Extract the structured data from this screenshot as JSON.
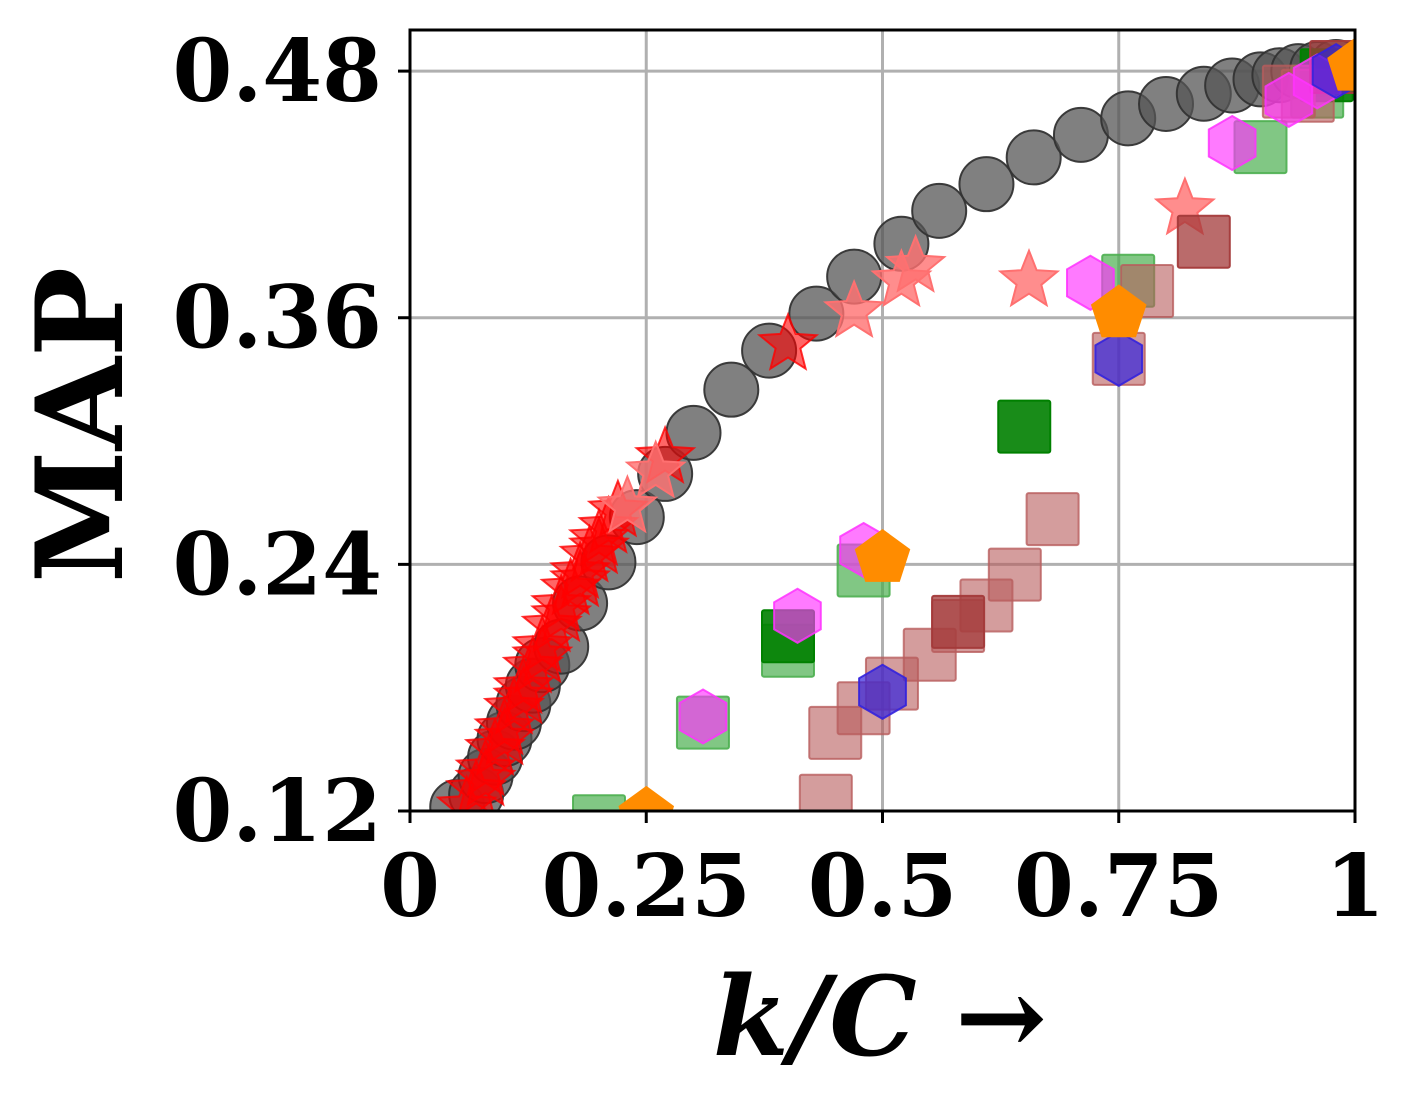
{
  "chart_data": {
    "type": "scatter",
    "title": "",
    "xlabel": "k/C →",
    "ylabel": "MAP",
    "xlim": [
      0,
      1
    ],
    "ylim": [
      0.12,
      0.5
    ],
    "xticks": [
      0,
      0.25,
      0.5,
      0.75,
      1
    ],
    "xtick_labels": [
      "0",
      "0.25",
      "0.5",
      "0.75",
      "1"
    ],
    "yticks": [
      0.12,
      0.24,
      0.36,
      0.48
    ],
    "ytick_labels": [
      "0.12",
      "0.24",
      "0.36",
      "0.48"
    ],
    "grid": true,
    "series": [
      {
        "name": "gray-circles",
        "marker": "circle",
        "color": "#555555",
        "opacity": 0.75,
        "x": [
          0.05,
          0.07,
          0.08,
          0.09,
          0.1,
          0.11,
          0.12,
          0.13,
          0.14,
          0.16,
          0.18,
          0.21,
          0.24,
          0.27,
          0.3,
          0.34,
          0.38,
          0.43,
          0.47,
          0.52,
          0.56,
          0.61,
          0.66,
          0.71,
          0.76,
          0.8,
          0.84,
          0.87,
          0.9,
          0.92,
          0.94,
          0.96,
          0.98
        ],
        "y": [
          0.122,
          0.128,
          0.137,
          0.146,
          0.155,
          0.163,
          0.172,
          0.181,
          0.191,
          0.2,
          0.221,
          0.241,
          0.263,
          0.284,
          0.304,
          0.325,
          0.344,
          0.362,
          0.38,
          0.396,
          0.412,
          0.425,
          0.438,
          0.449,
          0.457,
          0.464,
          0.469,
          0.473,
          0.476,
          0.478,
          0.48,
          0.481,
          0.482
        ]
      },
      {
        "name": "red-stars",
        "marker": "star",
        "color": "#ff0000",
        "opacity": 0.6,
        "x": [
          0.06,
          0.07,
          0.08,
          0.09,
          0.1,
          0.11,
          0.12,
          0.13,
          0.14,
          0.15,
          0.16,
          0.17,
          0.18,
          0.19,
          0.2,
          0.21,
          0.22,
          0.08,
          0.1,
          0.12,
          0.14,
          0.16,
          0.18,
          0.2,
          0.27,
          0.4
        ],
        "y": [
          0.122,
          0.13,
          0.14,
          0.15,
          0.16,
          0.17,
          0.18,
          0.19,
          0.2,
          0.21,
          0.22,
          0.228,
          0.236,
          0.244,
          0.252,
          0.258,
          0.266,
          0.135,
          0.155,
          0.175,
          0.195,
          0.215,
          0.232,
          0.248,
          0.292,
          0.347
        ]
      },
      {
        "name": "light-red-stars",
        "marker": "star",
        "color": "#ff7070",
        "opacity": 0.8,
        "x": [
          0.23,
          0.26,
          0.47,
          0.52,
          0.535,
          0.655,
          0.82
        ],
        "y": [
          0.268,
          0.285,
          0.363,
          0.378,
          0.385,
          0.378,
          0.413
        ]
      },
      {
        "name": "green-squares",
        "marker": "square",
        "color": "#4caf50",
        "opacity": 0.7,
        "x": [
          0.31,
          0.4,
          0.48,
          0.76,
          0.9,
          0.96,
          0.2
        ],
        "y": [
          0.163,
          0.198,
          0.237,
          0.378,
          0.443,
          0.47,
          0.115
        ]
      },
      {
        "name": "dark-green-squares",
        "marker": "square",
        "color": "#008000",
        "opacity": 0.9,
        "x": [
          0.4,
          0.65,
          0.97
        ],
        "y": [
          0.205,
          0.307,
          0.478
        ]
      },
      {
        "name": "brown-squares",
        "marker": "square",
        "color": "#b85c5c",
        "opacity": 0.6,
        "x": [
          0.44,
          0.45,
          0.48,
          0.51,
          0.55,
          0.58,
          0.61,
          0.64,
          0.68,
          0.78,
          0.75,
          0.93,
          0.95
        ],
        "y": [
          0.125,
          0.158,
          0.17,
          0.182,
          0.196,
          0.21,
          0.22,
          0.235,
          0.262,
          0.373,
          0.34,
          0.47,
          0.468
        ]
      },
      {
        "name": "dark-brown-squares",
        "marker": "square",
        "color": "#a33a3a",
        "opacity": 0.75,
        "x": [
          0.84,
          0.58,
          0.98
        ],
        "y": [
          0.397,
          0.212,
          0.482
        ]
      },
      {
        "name": "magenta-hexagons",
        "marker": "hexagon",
        "color": "#ff33ff",
        "opacity": 0.65,
        "x": [
          0.31,
          0.41,
          0.48,
          0.72,
          0.87,
          0.93,
          0.96
        ],
        "y": [
          0.166,
          0.215,
          0.247,
          0.377,
          0.445,
          0.466,
          0.475
        ]
      },
      {
        "name": "blue-hexagons",
        "marker": "hexagon",
        "color": "#3322dd",
        "opacity": 0.7,
        "x": [
          0.5,
          0.75,
          0.98
        ],
        "y": [
          0.178,
          0.34,
          0.48
        ]
      },
      {
        "name": "orange-pentagons",
        "marker": "pentagon",
        "color": "#ff8c00",
        "opacity": 1,
        "x": [
          0.25,
          0.5,
          0.75,
          1.0
        ],
        "y": [
          0.118,
          0.243,
          0.362,
          0.482
        ]
      }
    ]
  }
}
